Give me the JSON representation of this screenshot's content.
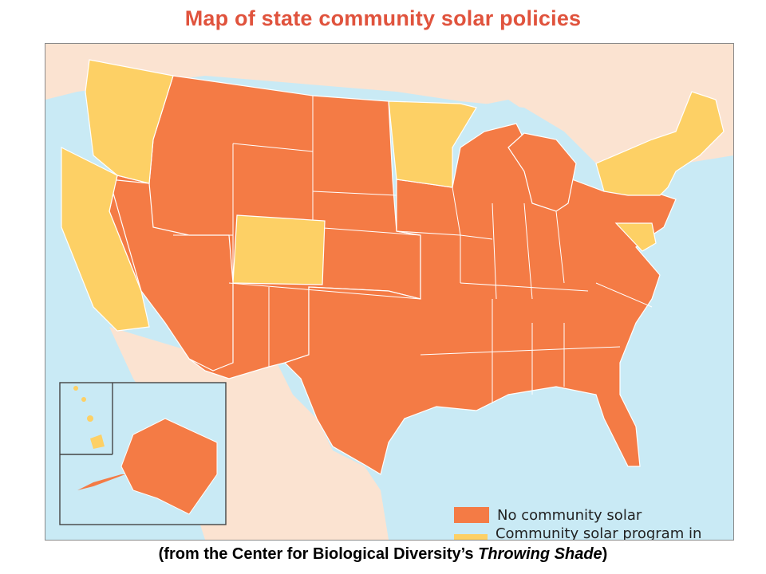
{
  "title": "Map of state community solar policies",
  "legend": [
    {
      "label": "No community solar",
      "color": "#f47b45"
    },
    {
      "label": "Community solar program in place",
      "color": "#fdd065"
    }
  ],
  "caption": {
    "prefix": "(from the Center for Biological Diversity’s ",
    "italic": "Throwing Shade",
    "suffix": ")"
  },
  "colors": {
    "water": "#c9eaf5",
    "land_other": "#fbe3d1",
    "no_program": "#f47b45",
    "program": "#fdd065",
    "border": "#ffffff"
  },
  "states_with_program": [
    "Washington",
    "Oregon",
    "California",
    "Colorado",
    "Minnesota",
    "Hawaii",
    "Maine",
    "Vermont",
    "New Hampshire",
    "Massachusetts",
    "Connecticut",
    "Rhode Island",
    "New York",
    "Maryland",
    "Delaware",
    "District of Columbia"
  ]
}
